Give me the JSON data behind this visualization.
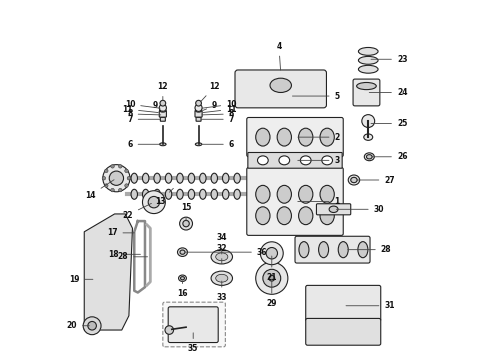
{
  "bg_color": "#ffffff",
  "ec": "#222222",
  "lw": 0.8
}
